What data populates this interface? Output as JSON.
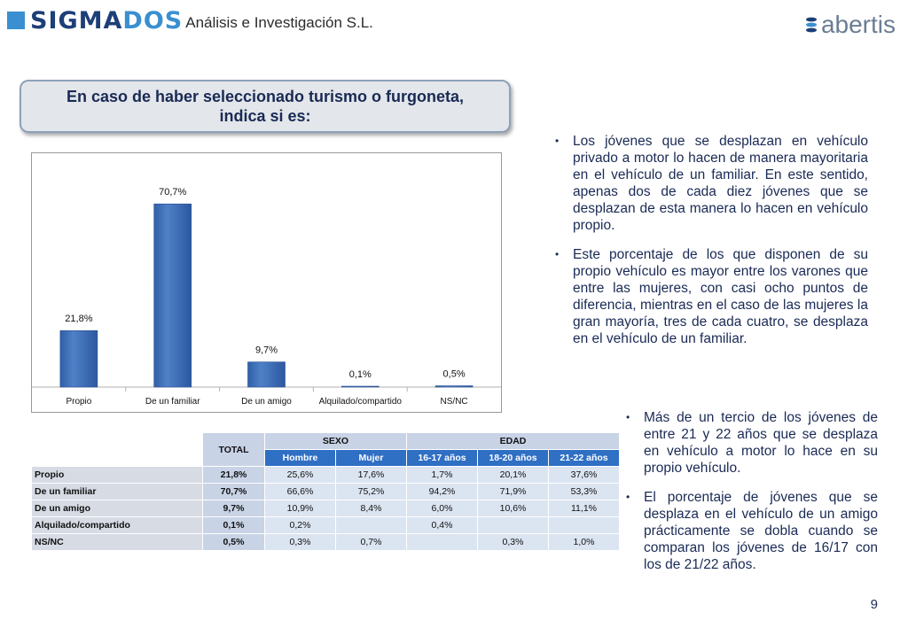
{
  "header": {
    "logo_text_a": "SIGMA",
    "logo_text_b": "DOS",
    "company": "Análisis e Investigación S.L.",
    "partner_logo": "abertis",
    "partner_icon": "abertis-logo-icon"
  },
  "title": "En caso de haber seleccionado turismo o furgoneta, indica si es:",
  "chart_data": {
    "type": "bar",
    "categories": [
      "Propio",
      "De un familiar",
      "De un amigo",
      "Alquilado/compartido",
      "NS/NC"
    ],
    "values": [
      21.8,
      70.7,
      9.7,
      0.1,
      0.5
    ],
    "labels": [
      "21,8%",
      "70,7%",
      "9,7%",
      "0,1%",
      "0,5%"
    ],
    "ylim": [
      0,
      80
    ],
    "grid": false,
    "bar_color": "#4f81c7",
    "title": "",
    "xlabel": "",
    "ylabel": ""
  },
  "bullets_top": [
    "Los jóvenes que se desplazan en vehículo privado a motor lo hacen de manera mayoritaria en el vehículo de un familiar. En este sentido, apenas dos de cada diez jóvenes que se desplazan de esta manera lo hacen en vehículo propio.",
    "Este porcentaje de los que disponen de su propio vehículo es mayor entre los varones que entre las mujeres, con casi ocho puntos de diferencia, mientras en el caso de las mujeres la gran mayoría, tres de cada cuatro, se desplaza en el vehículo de un familiar."
  ],
  "bullets_bottom": [
    "Más de un tercio de los jóvenes de entre 21 y 22 años que se desplaza en vehículo a motor lo hace en su propio vehículo.",
    "El porcentaje de jóvenes que se desplaza en el vehículo de un amigo prácticamente se dobla cuando se comparan los jóvenes de 16/17 con los de 21/22 años."
  ],
  "table": {
    "total_header": "TOTAL",
    "group_sexo": "SEXO",
    "group_edad": "EDAD",
    "sub_headers": [
      "Hombre",
      "Mujer",
      "16-17 años",
      "18-20 años",
      "21-22 años"
    ],
    "rows": [
      {
        "label": "Propio",
        "total": "21,8%",
        "cells": [
          "25,6%",
          "17,6%",
          "1,7%",
          "20,1%",
          "37,6%"
        ]
      },
      {
        "label": "De un familiar",
        "total": "70,7%",
        "cells": [
          "66,6%",
          "75,2%",
          "94,2%",
          "71,9%",
          "53,3%"
        ]
      },
      {
        "label": "De un amigo",
        "total": "9,7%",
        "cells": [
          "10,9%",
          "8,4%",
          "6,0%",
          "10,6%",
          "11,1%"
        ]
      },
      {
        "label": "Alquilado/compartido",
        "total": "0,1%",
        "cells": [
          "0,2%",
          "",
          "0,4%",
          "",
          ""
        ]
      },
      {
        "label": "NS/NC",
        "total": "0,5%",
        "cells": [
          "0,3%",
          "0,7%",
          "",
          "0,3%",
          "1,0%"
        ]
      }
    ]
  },
  "page_number": "9"
}
